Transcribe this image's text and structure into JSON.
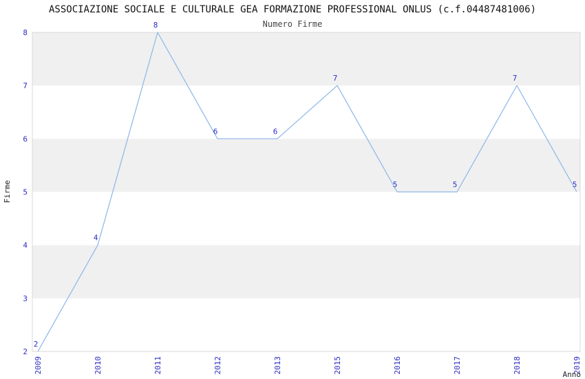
{
  "title": "ASSOCIAZIONE SOCIALE E CULTURALE GEA FORMAZIONE PROFESSIONAL ONLUS (c.f.04487481006)",
  "subtitle": "Numero Firme",
  "chart_data": {
    "type": "line",
    "categories": [
      "2009",
      "2010",
      "2011",
      "2012",
      "2013",
      "2015",
      "2016",
      "2017",
      "2018",
      "2019"
    ],
    "values": [
      2,
      4,
      8,
      6,
      6,
      7,
      5,
      5,
      7,
      5
    ],
    "title": "Numero Firme",
    "xlabel": "Anno",
    "ylabel": "Firme",
    "ylim": [
      2,
      8
    ],
    "yticks": [
      2,
      3,
      4,
      5,
      6,
      7,
      8
    ],
    "grid": false,
    "legend_position": "none",
    "line_color": "#8cb6e8",
    "tick_label_color": "#2d2dc4",
    "point_label_color": "#2d2dc4",
    "band_color_odd": "#f0f0f0",
    "band_color_even": "#ffffff",
    "plot_border_color": "#d8d8d8"
  }
}
